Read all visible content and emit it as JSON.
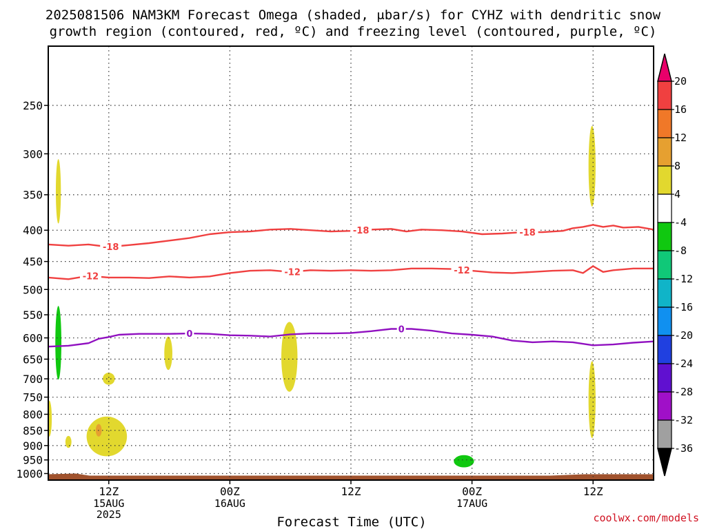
{
  "title": {
    "line1": "2025081506 NAM3KM Forecast Omega (shaded, μbar/s) for CYHZ with dendritic snow",
    "line2": "growth region (contoured, red, ºC) and freezing level (contoured, purple, ºC)"
  },
  "xlabel": "Forecast Time (UTC)",
  "credit": "coolwx.com/models",
  "chart_data": {
    "type": "heatmap",
    "description_units": "x: forecast hours after 2025-08-15 06Z; y: pressure (hPa)",
    "x_range_hours": [
      0,
      60
    ],
    "y_levels_hpa": [
      250,
      300,
      350,
      400,
      450,
      500,
      550,
      600,
      650,
      700,
      750,
      800,
      850,
      900,
      950,
      1000
    ],
    "y_top_hpa": 200,
    "y_bottom_hpa": 1025,
    "x_ticks": [
      {
        "hour": 6,
        "label": "12Z",
        "date": "15AUG",
        "year": "2025"
      },
      {
        "hour": 18,
        "label": "00Z",
        "date": "16AUG",
        "year": ""
      },
      {
        "hour": 30,
        "label": "12Z",
        "date": "",
        "year": ""
      },
      {
        "hour": 42,
        "label": "00Z",
        "date": "17AUG",
        "year": ""
      },
      {
        "hour": 54,
        "label": "12Z",
        "date": "",
        "year": ""
      }
    ],
    "grid": true,
    "contours": [
      {
        "value": -18,
        "label": "-18",
        "color": "#f04040",
        "points": [
          [
            0,
            422
          ],
          [
            2,
            424
          ],
          [
            4,
            422
          ],
          [
            6,
            426
          ],
          [
            8,
            423
          ],
          [
            10,
            420
          ],
          [
            12,
            416
          ],
          [
            14,
            412
          ],
          [
            16,
            406
          ],
          [
            18,
            403
          ],
          [
            20,
            402
          ],
          [
            22,
            399
          ],
          [
            24,
            398
          ],
          [
            26,
            400
          ],
          [
            28,
            402
          ],
          [
            30,
            401
          ],
          [
            32,
            399
          ],
          [
            34,
            398
          ],
          [
            35.5,
            402
          ],
          [
            37,
            399
          ],
          [
            39,
            400
          ],
          [
            41,
            402
          ],
          [
            43,
            406
          ],
          [
            45,
            405
          ],
          [
            47,
            403
          ],
          [
            49,
            403
          ],
          [
            51,
            401
          ],
          [
            52,
            397
          ],
          [
            53,
            395
          ],
          [
            54,
            392
          ],
          [
            55,
            395
          ],
          [
            56,
            393
          ],
          [
            57,
            396
          ],
          [
            58.5,
            395
          ],
          [
            60,
            399
          ]
        ],
        "label_hours": [
          6.2,
          31,
          47.5
        ]
      },
      {
        "value": -12,
        "label": "-12",
        "color": "#f04040",
        "points": [
          [
            0,
            478
          ],
          [
            2,
            481
          ],
          [
            4,
            475
          ],
          [
            6,
            478
          ],
          [
            8,
            478
          ],
          [
            10,
            479
          ],
          [
            12,
            476
          ],
          [
            14,
            478
          ],
          [
            16,
            476
          ],
          [
            18,
            470
          ],
          [
            20,
            466
          ],
          [
            22,
            465
          ],
          [
            24,
            468
          ],
          [
            26,
            465
          ],
          [
            28,
            466
          ],
          [
            30,
            465
          ],
          [
            32,
            466
          ],
          [
            34,
            465
          ],
          [
            36,
            462
          ],
          [
            38,
            462
          ],
          [
            40,
            463
          ],
          [
            42,
            466
          ],
          [
            44,
            469
          ],
          [
            46,
            470
          ],
          [
            48,
            468
          ],
          [
            50,
            466
          ],
          [
            52,
            465
          ],
          [
            53,
            470
          ],
          [
            54,
            458
          ],
          [
            55,
            468
          ],
          [
            56,
            465
          ],
          [
            58,
            462
          ],
          [
            60,
            462
          ]
        ],
        "label_hours": [
          4.2,
          24.2,
          41
        ]
      },
      {
        "value": 0,
        "label": "0",
        "color": "#9010c0",
        "points": [
          [
            0,
            620
          ],
          [
            2,
            618
          ],
          [
            4,
            612
          ],
          [
            5,
            602
          ],
          [
            6,
            598
          ],
          [
            7,
            593
          ],
          [
            9,
            591
          ],
          [
            12,
            591
          ],
          [
            14,
            590
          ],
          [
            16,
            591
          ],
          [
            18,
            594
          ],
          [
            20,
            595
          ],
          [
            22,
            597
          ],
          [
            24,
            592
          ],
          [
            26,
            590
          ],
          [
            28,
            590
          ],
          [
            30,
            589
          ],
          [
            32,
            585
          ],
          [
            34,
            580
          ],
          [
            36,
            580
          ],
          [
            38,
            584
          ],
          [
            40,
            590
          ],
          [
            42,
            593
          ],
          [
            44,
            597
          ],
          [
            46,
            606
          ],
          [
            48,
            610
          ],
          [
            50,
            608
          ],
          [
            52,
            610
          ],
          [
            54,
            617
          ],
          [
            56,
            615
          ],
          [
            58,
            611
          ],
          [
            60,
            608
          ]
        ],
        "label_hours": [
          14,
          35
        ]
      }
    ],
    "shaded_regions": [
      {
        "range": "4 to 8",
        "color": "#e2d82e",
        "blobs": [
          {
            "cx": 1.0,
            "cy": 348,
            "rx": 0.25,
            "ry": 42
          },
          {
            "cx": 0.1,
            "cy": 815,
            "rx": 0.25,
            "ry": 55
          },
          {
            "cx": 6.0,
            "cy": 700,
            "rx": 0.6,
            "ry": 16
          },
          {
            "cx": 11.9,
            "cy": 637,
            "rx": 0.4,
            "ry": 40
          },
          {
            "cx": 2.0,
            "cy": 888,
            "rx": 0.3,
            "ry": 20
          },
          {
            "cx": 5.8,
            "cy": 872,
            "rx": 2.0,
            "ry": 65
          },
          {
            "cx": 23.9,
            "cy": 650,
            "rx": 0.8,
            "ry": 85
          },
          {
            "cx": 53.9,
            "cy": 318,
            "rx": 0.35,
            "ry": 48
          },
          {
            "cx": 53.9,
            "cy": 765,
            "rx": 0.35,
            "ry": 110
          }
        ]
      },
      {
        "range": "8 to 12",
        "color": "#e6a030",
        "blobs": [
          {
            "cx": 5.0,
            "cy": 850,
            "rx": 0.3,
            "ry": 20
          }
        ]
      },
      {
        "range": "-8 to -4",
        "color": "#10c810",
        "blobs": [
          {
            "cx": 1.0,
            "cy": 617,
            "rx": 0.3,
            "ry": 85
          },
          {
            "cx": 41.2,
            "cy": 955,
            "rx": 1.0,
            "ry": 22
          }
        ]
      }
    ],
    "terrain": {
      "color": "#a0522d",
      "pressure_hpa": 1008
    },
    "colorbar": {
      "ticks": [
        "20",
        "16",
        "12",
        "8",
        "4",
        "-4",
        "-8",
        "-12",
        "-16",
        "-20",
        "-24",
        "-28",
        "-32",
        "-36"
      ],
      "colors": [
        "#e8006a",
        "#f04040",
        "#f07828",
        "#e6a030",
        "#e2d82e",
        "#ffffff",
        "#10c810",
        "#10c878",
        "#10b4c8",
        "#1090f0",
        "#2040e0",
        "#6010d0",
        "#a010c8",
        "#a0a0a0",
        "#000000"
      ]
    }
  }
}
